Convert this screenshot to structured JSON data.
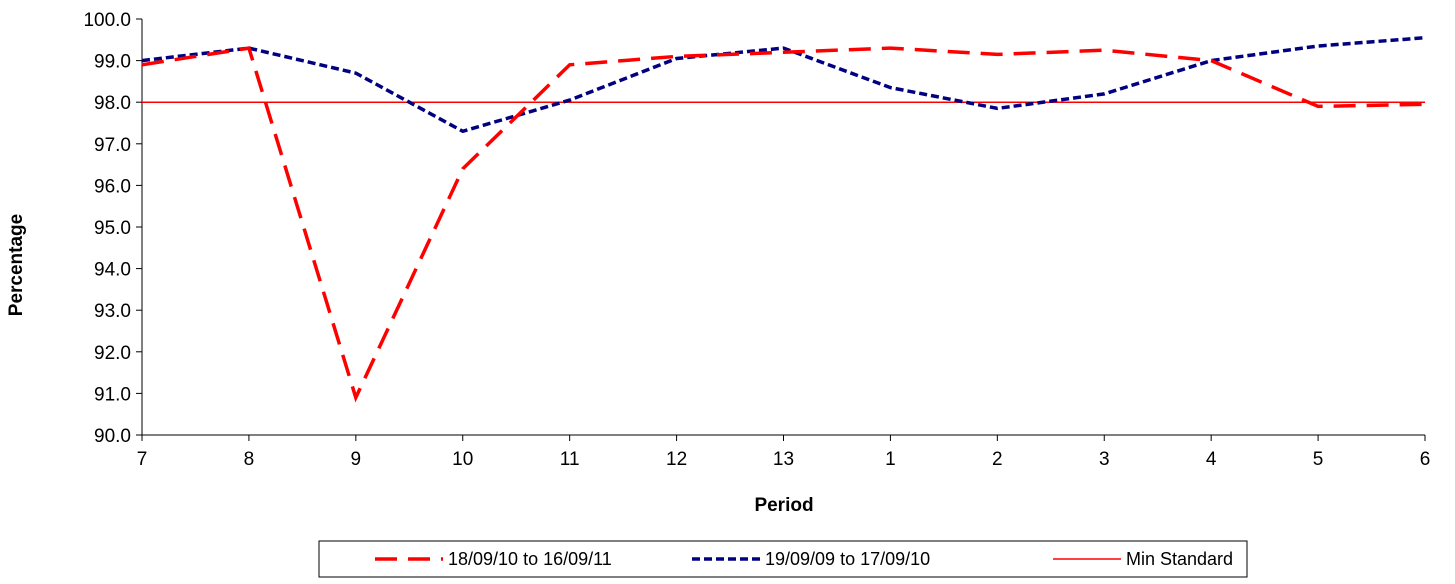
{
  "chart_data": {
    "type": "line",
    "title": "",
    "xlabel": "Period",
    "ylabel": "Percentage",
    "categories": [
      "7",
      "8",
      "9",
      "10",
      "11",
      "12",
      "13",
      "1",
      "2",
      "3",
      "4",
      "5",
      "6"
    ],
    "ylim": [
      90.0,
      100.0
    ],
    "yticks": [
      "90.0",
      "91.0",
      "92.0",
      "93.0",
      "94.0",
      "95.0",
      "96.0",
      "97.0",
      "98.0",
      "99.0",
      "100.0"
    ],
    "grid": false,
    "legend_position": "bottom",
    "series": [
      {
        "name": "18/09/10 to 16/09/11",
        "color": "#ff0000",
        "style": "long-dash",
        "values": [
          98.9,
          99.3,
          90.9,
          96.4,
          98.9,
          99.1,
          99.2,
          99.3,
          99.15,
          99.25,
          99.0,
          97.9,
          97.95
        ]
      },
      {
        "name": "19/09/09 to 17/09/10",
        "color": "#000080",
        "style": "short-dash",
        "values": [
          99.0,
          99.3,
          98.7,
          97.3,
          98.05,
          99.05,
          99.3,
          98.35,
          97.85,
          98.2,
          99.0,
          99.35,
          99.55
        ]
      },
      {
        "name": "Min Standard",
        "color": "#ff0000",
        "style": "solid",
        "values": [
          98,
          98,
          98,
          98,
          98,
          98,
          98,
          98,
          98,
          98,
          98,
          98,
          98
        ]
      }
    ]
  }
}
